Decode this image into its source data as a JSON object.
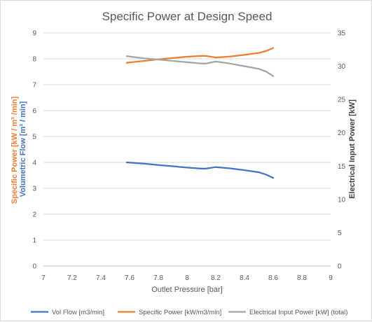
{
  "chart_data": {
    "type": "line",
    "title": "Specific Power at Design Speed",
    "xlabel": "Outlet Pressure [bar]",
    "ylabel_left_line1": "Specific Power [kW / m³ /min]",
    "ylabel_left_line2": "Volumetric Flow [m³ / min]",
    "ylabel_right": "Electrical Input Power [kW]",
    "xlim": [
      7,
      9
    ],
    "ylim_left": [
      0,
      9
    ],
    "ylim_right": [
      0,
      35
    ],
    "x_ticks": [
      "7",
      "7.2",
      "7.4",
      "7.6",
      "7.8",
      "8",
      "8.2",
      "8.4",
      "8.6",
      "8.8",
      "9"
    ],
    "y_left_ticks": [
      "0",
      "1",
      "2",
      "3",
      "4",
      "5",
      "6",
      "7",
      "8",
      "9"
    ],
    "y_right_ticks": [
      "0",
      "5",
      "10",
      "15",
      "20",
      "25",
      "30",
      "35"
    ],
    "grid": true,
    "legend_position": "bottom",
    "series": [
      {
        "name": "Vol Flow [m3/min]",
        "axis": "left",
        "color": "#4472c4",
        "x": [
          7.58,
          7.7,
          7.8,
          7.9,
          8.0,
          8.1,
          8.13,
          8.2,
          8.3,
          8.4,
          8.5,
          8.55,
          8.6
        ],
        "y": [
          4.0,
          3.95,
          3.9,
          3.85,
          3.8,
          3.76,
          3.76,
          3.82,
          3.77,
          3.7,
          3.62,
          3.53,
          3.4
        ]
      },
      {
        "name": "Specific Power  [kW/m3/min]",
        "axis": "left",
        "color": "#ed7d31",
        "x": [
          7.58,
          7.7,
          7.8,
          7.9,
          8.0,
          8.1,
          8.13,
          8.2,
          8.3,
          8.4,
          8.5,
          8.55,
          8.6
        ],
        "y": [
          7.85,
          7.92,
          7.98,
          8.03,
          8.08,
          8.11,
          8.11,
          8.05,
          8.09,
          8.15,
          8.23,
          8.3,
          8.42
        ]
      },
      {
        "name": "Electrical Input Power [kW] (total)",
        "axis": "right",
        "color": "#a5a5a5",
        "x": [
          7.58,
          7.7,
          7.8,
          7.9,
          8.0,
          8.1,
          8.13,
          8.2,
          8.3,
          8.4,
          8.5,
          8.55,
          8.6
        ],
        "y": [
          31.5,
          31.2,
          31.0,
          30.8,
          30.6,
          30.4,
          30.4,
          30.7,
          30.4,
          30.0,
          29.6,
          29.2,
          28.5
        ]
      }
    ]
  }
}
